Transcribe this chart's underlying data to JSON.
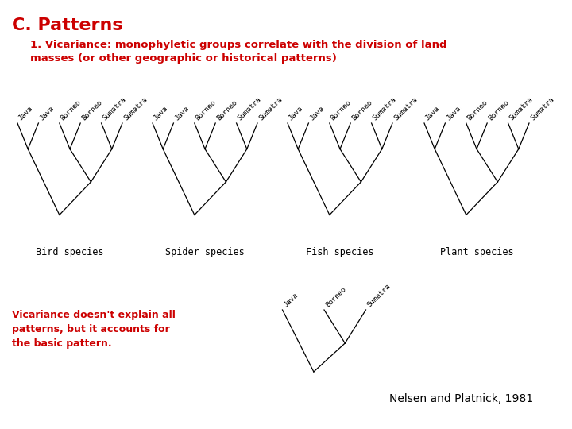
{
  "title": "C. Patterns",
  "title_color": "#cc0000",
  "title_fontsize": 16,
  "subtitle": "1. Vicariance: monophyletic groups correlate with the division of land\nmasses (or other geographic or historical patterns)",
  "subtitle_color": "#cc0000",
  "subtitle_fontsize": 9.5,
  "body_color": "#000000",
  "background_color": "#ffffff",
  "tree_labels_top": [
    "Java",
    "Java",
    "Borneo",
    "Borneo",
    "Sumatra",
    "Sumatra"
  ],
  "species_labels": [
    "Bird species",
    "Spider species",
    "Fish species",
    "Plant species"
  ],
  "bottom_tree_labels": [
    "Java",
    "Borneo",
    "Sumatra"
  ],
  "vicariance_text": "Vicariance doesn't explain all\npatterns, but it accounts for\nthe basic pattern.",
  "vicariance_color": "#cc0000",
  "vicariance_fontsize": 9,
  "citation": "Nelsen and Platnick, 1981",
  "citation_fontsize": 10
}
